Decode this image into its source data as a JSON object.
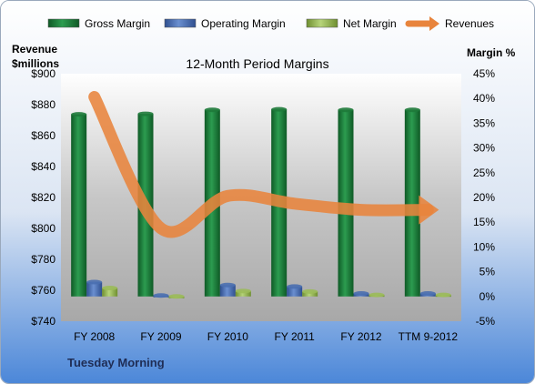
{
  "chart_data": {
    "type": "bar",
    "title": "12-Month Period Margins",
    "company": "Tuesday Morning",
    "categories": [
      "FY 2008",
      "FY 2009",
      "FY 2010",
      "FY 2011",
      "FY 2012",
      "TTM 9-2012"
    ],
    "y_left": {
      "label_line1": "Revenue",
      "label_line2": "$millions",
      "range": [
        740,
        900
      ],
      "ticks": [
        "$740",
        "$760",
        "$780",
        "$800",
        "$820",
        "$840",
        "$860",
        "$880",
        "$900"
      ],
      "tick_values": [
        740,
        760,
        780,
        800,
        820,
        840,
        860,
        880,
        900
      ]
    },
    "y_right": {
      "label": "Margin %",
      "range": [
        -5,
        45
      ],
      "ticks": [
        "-5%",
        "0%",
        "5%",
        "10%",
        "15%",
        "20%",
        "25%",
        "30%",
        "35%",
        "40%",
        "45%"
      ],
      "tick_values": [
        -5,
        0,
        5,
        10,
        15,
        20,
        25,
        30,
        35,
        40,
        45
      ]
    },
    "series": [
      {
        "name": "Gross Margin",
        "axis": "right",
        "type": "bar",
        "color": "#1e7a3a",
        "values": [
          36.8,
          36.9,
          37.7,
          37.8,
          37.7,
          37.7
        ]
      },
      {
        "name": "Operating Margin",
        "axis": "right",
        "type": "bar",
        "color": "#4a6fb0",
        "values": [
          2.9,
          0.2,
          2.3,
          2.0,
          0.6,
          0.6
        ]
      },
      {
        "name": "Net Margin",
        "axis": "right",
        "type": "bar",
        "color": "#9bbb59",
        "values": [
          1.7,
          -0.2,
          1.1,
          1.0,
          0.3,
          0.3
        ]
      },
      {
        "name": "Revenues",
        "axis": "left",
        "type": "line",
        "color": "#e8843c",
        "values": [
          885,
          800,
          821,
          816,
          812,
          812
        ]
      }
    ],
    "legend_position": "top",
    "grid": false
  }
}
